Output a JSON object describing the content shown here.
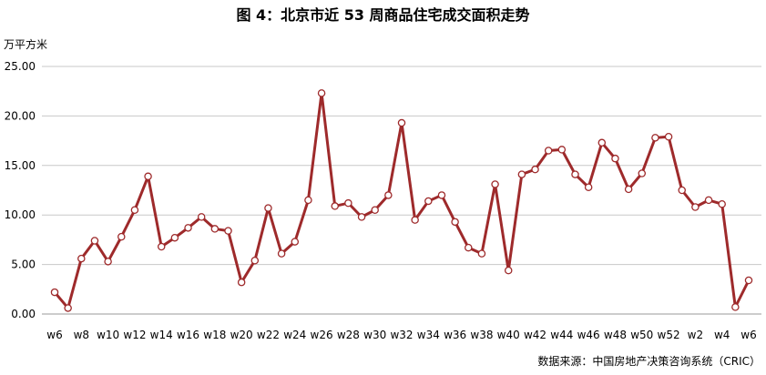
{
  "title": "图 4：北京市近 53 周商品住宅成交面积走势",
  "ylabel": "万平方米",
  "source": "数据来源：中国房地产决策咨询系统（CRIC）",
  "colors": {
    "line": "#9E2A2B",
    "marker_fill": "#ffffff",
    "grid": "#c8c8c8",
    "axis": "#999999"
  },
  "chart_data": {
    "type": "line",
    "title": "图 4：北京市近 53 周商品住宅成交面积走势",
    "ylabel": "万平方米",
    "xlabel": "",
    "ylim": [
      0,
      25
    ],
    "yticks": [
      "0.00",
      "5.00",
      "10.00",
      "15.00",
      "20.00",
      "25.00"
    ],
    "grid": true,
    "x": [
      "w6",
      "w7",
      "w8",
      "w9",
      "w10",
      "w11",
      "w12",
      "w13",
      "w14",
      "w15",
      "w16",
      "w17",
      "w18",
      "w19",
      "w20",
      "w21",
      "w22",
      "w23",
      "w24",
      "w25",
      "w26",
      "w27",
      "w28",
      "w29",
      "w30",
      "w31",
      "w32",
      "w33",
      "w34",
      "w35",
      "w36",
      "w37",
      "w38",
      "w39",
      "w40",
      "w41",
      "w42",
      "w43",
      "w44",
      "w45",
      "w46",
      "w47",
      "w48",
      "w49",
      "w50",
      "w51",
      "w52",
      "w1",
      "w2",
      "w3",
      "w4",
      "w5",
      "w6"
    ],
    "xtick_labels": [
      "w6",
      "w8",
      "w10",
      "w12",
      "w14",
      "w16",
      "w18",
      "w20",
      "w22",
      "w24",
      "w26",
      "w28",
      "w30",
      "w32",
      "w34",
      "w36",
      "w38",
      "w40",
      "w42",
      "w44",
      "w46",
      "w48",
      "w50",
      "w52",
      "w2",
      "w4",
      "w6"
    ],
    "series": [
      {
        "values": [
          2.2,
          0.6,
          5.6,
          7.4,
          5.3,
          7.8,
          10.5,
          13.9,
          6.8,
          7.7,
          8.7,
          9.8,
          8.6,
          8.4,
          3.2,
          5.4,
          10.7,
          6.1,
          7.3,
          11.5,
          22.3,
          10.9,
          11.2,
          9.8,
          10.5,
          12.0,
          19.3,
          9.5,
          11.4,
          12.0,
          9.3,
          6.7,
          6.1,
          13.1,
          4.4,
          14.1,
          14.6,
          16.5,
          16.6,
          14.1,
          12.8,
          17.3,
          15.7,
          12.6,
          14.2,
          17.8,
          17.9,
          12.5,
          10.8,
          11.5,
          11.1,
          0.7,
          3.4
        ]
      }
    ]
  }
}
